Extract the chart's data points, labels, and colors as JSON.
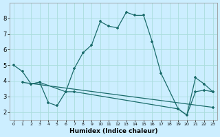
{
  "title": "",
  "xlabel": "Humidex (Indice chaleur)",
  "bg_color": "#cceeff",
  "line_color": "#1a6b6b",
  "xlim": [
    -0.5,
    23.5
  ],
  "ylim": [
    1.5,
    9.0
  ],
  "xticks": [
    0,
    1,
    2,
    3,
    4,
    5,
    6,
    7,
    8,
    9,
    10,
    11,
    12,
    13,
    14,
    15,
    16,
    17,
    18,
    19,
    20,
    21,
    22,
    23
  ],
  "yticks": [
    2,
    3,
    4,
    5,
    6,
    7,
    8
  ],
  "grid_color": "#aadddd",
  "line1_x": [
    0,
    1,
    2,
    3,
    6,
    7,
    8,
    9,
    10,
    11,
    12,
    13,
    14,
    15,
    16,
    17,
    19,
    20,
    21,
    22,
    23
  ],
  "line1_y": [
    5.0,
    4.6,
    3.8,
    3.9,
    3.3,
    4.8,
    5.8,
    6.3,
    7.8,
    7.5,
    7.4,
    8.4,
    8.2,
    8.2,
    6.5,
    4.5,
    2.2,
    1.8,
    4.2,
    3.8,
    3.3
  ],
  "line2_x": [
    2,
    3,
    4,
    5,
    6,
    7,
    19,
    20,
    21,
    22,
    23
  ],
  "line2_y": [
    3.8,
    3.9,
    2.6,
    2.4,
    3.3,
    3.3,
    2.2,
    1.8,
    3.3,
    3.4,
    3.3
  ],
  "line3_x": [
    1,
    23
  ],
  "line3_y": [
    3.9,
    2.3
  ]
}
